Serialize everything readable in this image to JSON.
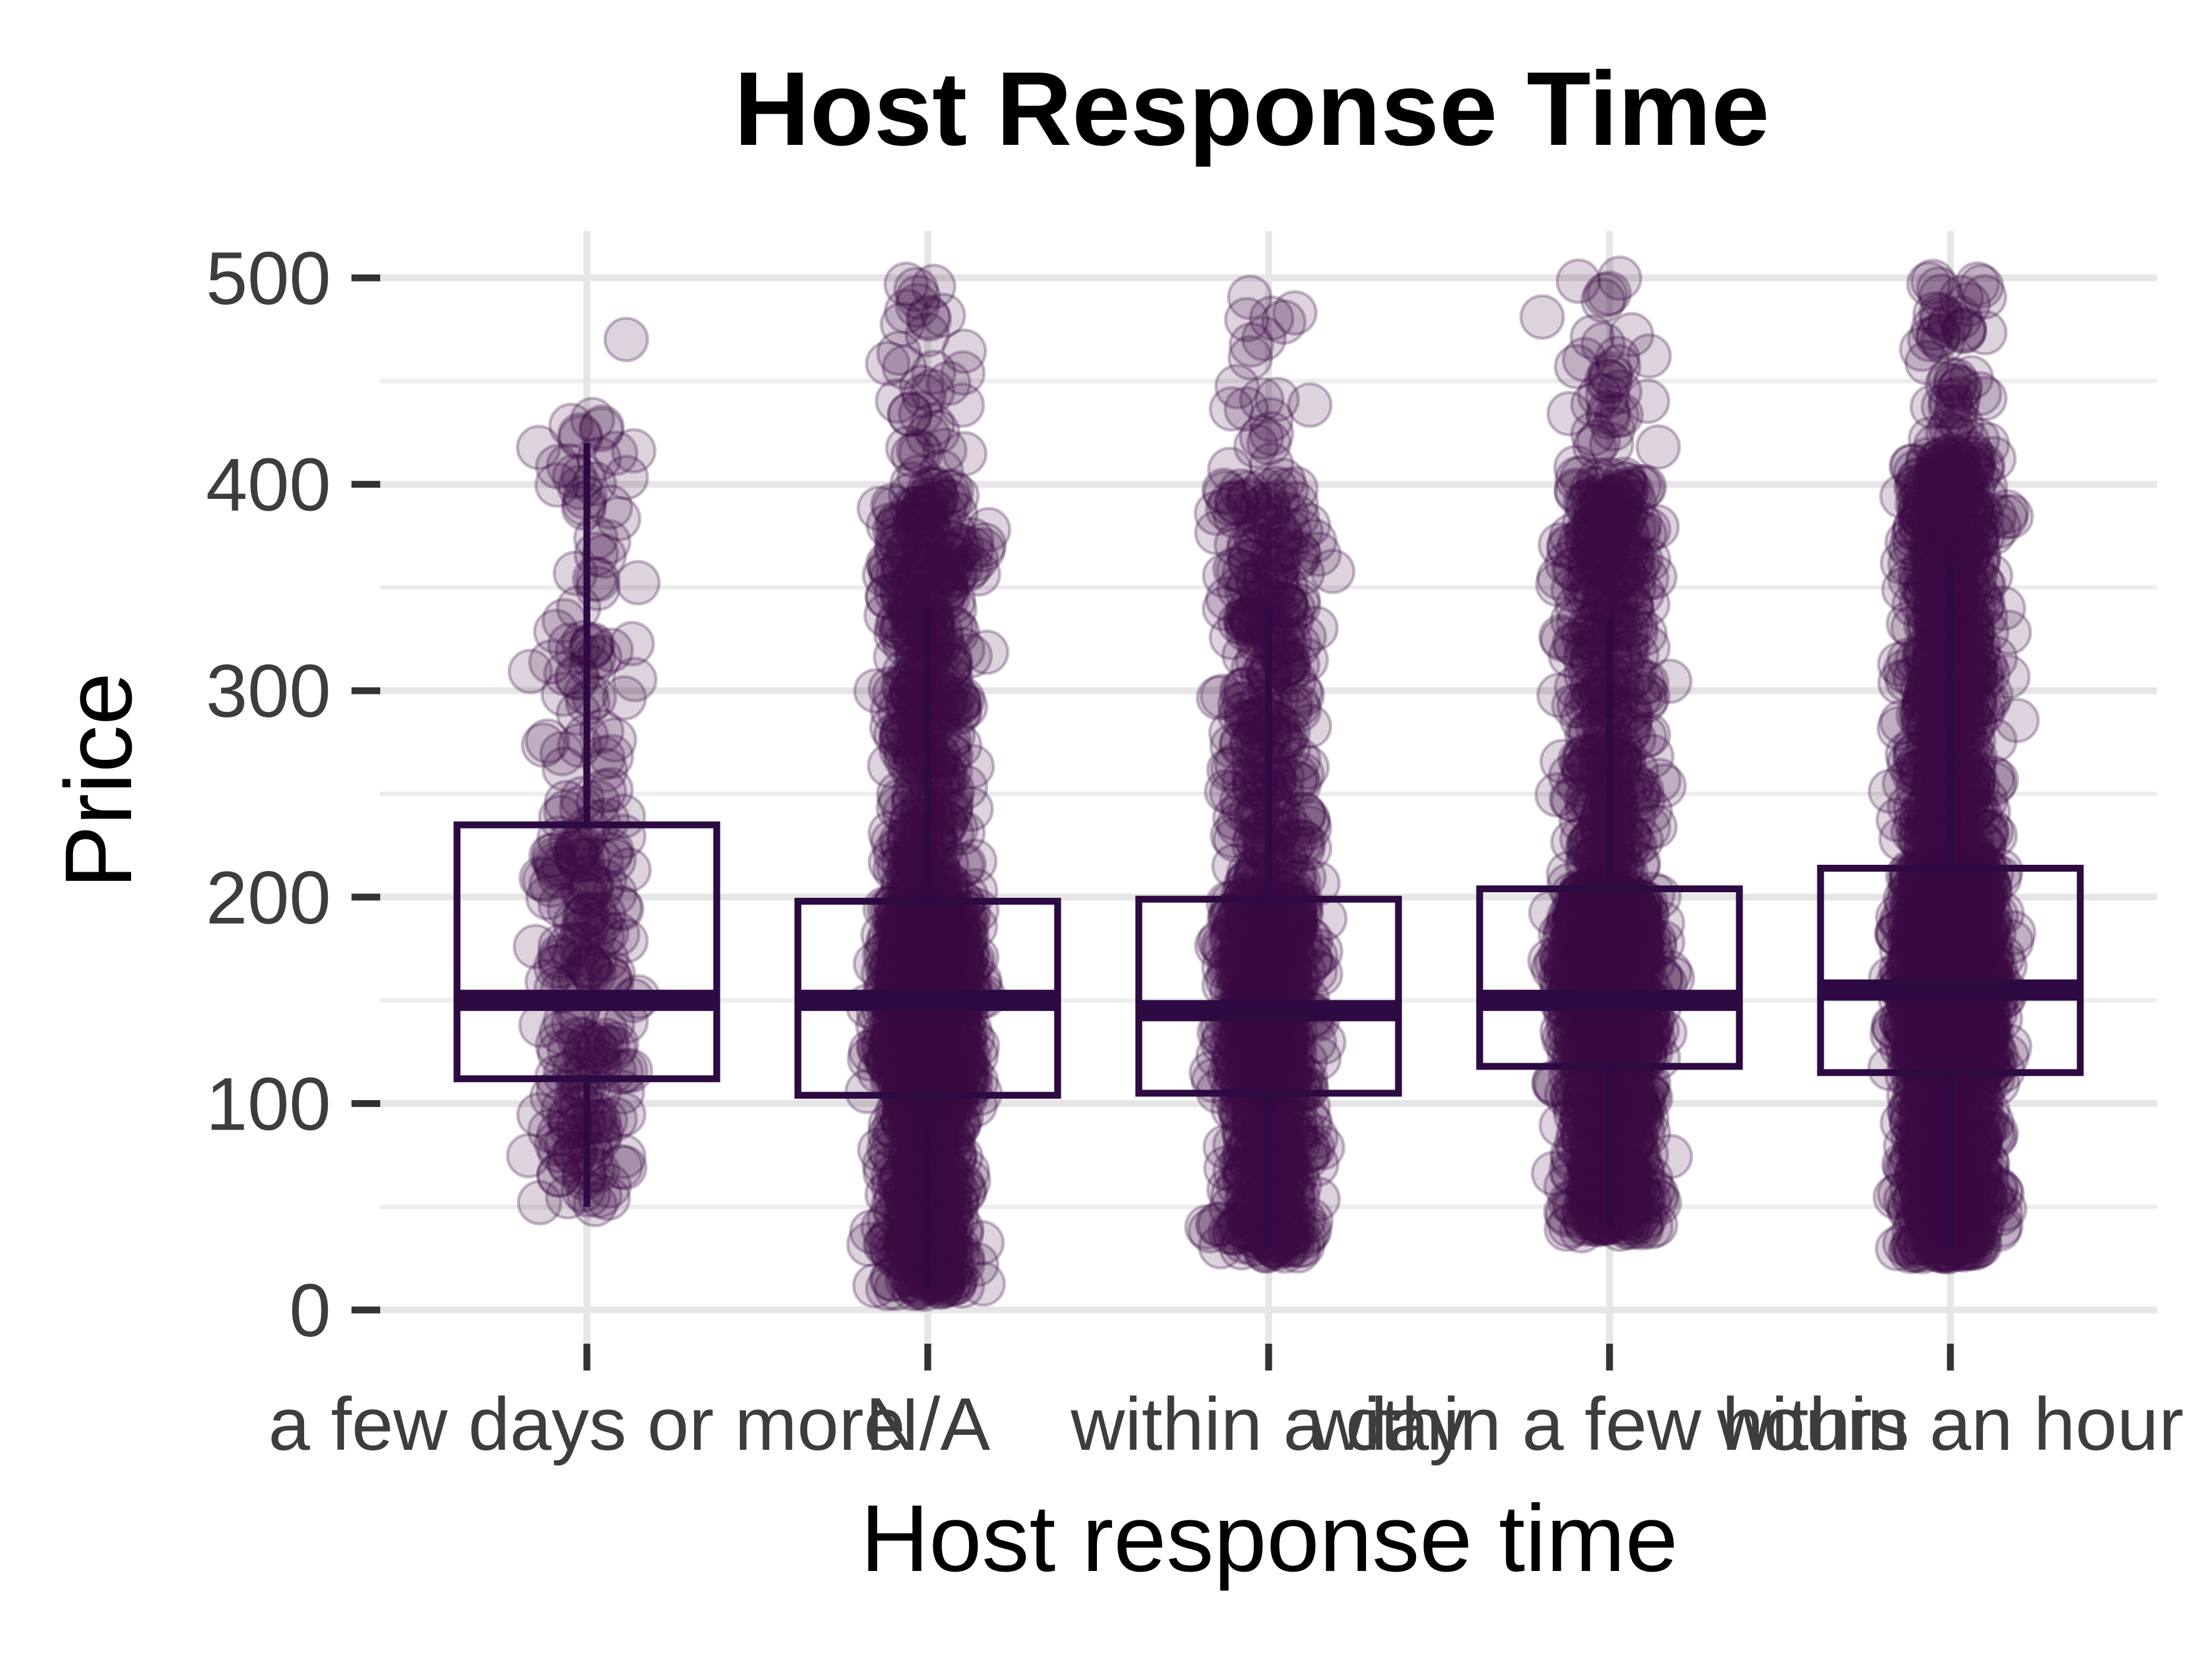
{
  "chart_data": {
    "type": "boxplot",
    "title": "Host Response Time",
    "xlabel": "Host response time",
    "ylabel": "Price",
    "ylim": [
      0,
      500
    ],
    "yticks": [
      0,
      100,
      200,
      300,
      400,
      500
    ],
    "grid": true,
    "legend": "none",
    "colors": {
      "box": "#2d0a42",
      "points": "#3b0a45",
      "grid_major": "#e6e6e6",
      "grid_minor": "#ededed",
      "tick": "#333333"
    },
    "categories": [
      "a few days or more",
      "N/A",
      "within a day",
      "within a few hours",
      "within an hour"
    ],
    "boxes": [
      {
        "category": "a few days or more",
        "q1": 112,
        "median": 150,
        "q3": 235,
        "whisker_low": 50,
        "whisker_high": 420,
        "point_min": 50,
        "point_max": 480
      },
      {
        "category": "N/A",
        "q1": 104,
        "median": 150,
        "q3": 198,
        "whisker_low": 10,
        "whisker_high": 340,
        "point_min": 10,
        "point_max": 500
      },
      {
        "category": "within a day",
        "q1": 105,
        "median": 145,
        "q3": 199,
        "whisker_low": 30,
        "whisker_high": 340,
        "point_min": 28,
        "point_max": 497
      },
      {
        "category": "within a few hours",
        "q1": 118,
        "median": 150,
        "q3": 204,
        "whisker_low": 40,
        "whisker_high": 335,
        "point_min": 38,
        "point_max": 500
      },
      {
        "category": "within an hour",
        "q1": 115,
        "median": 155,
        "q3": 214,
        "whisker_low": 30,
        "whisker_high": 360,
        "point_min": 28,
        "point_max": 500
      }
    ]
  }
}
